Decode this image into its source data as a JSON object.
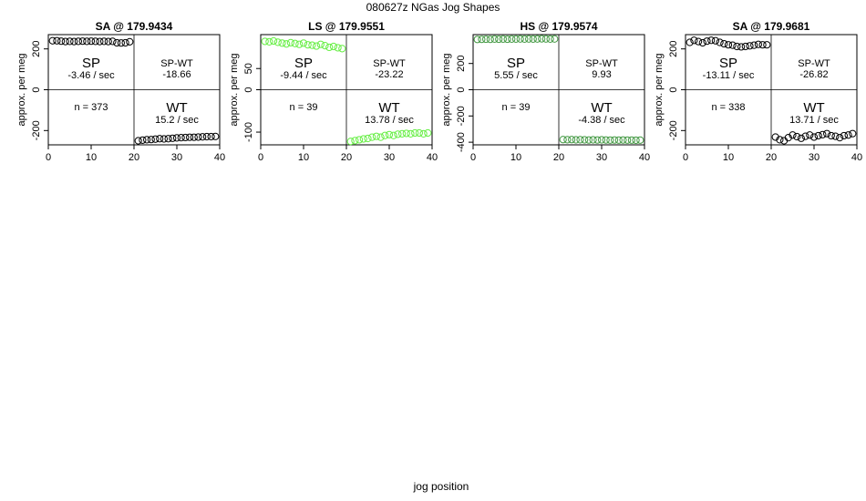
{
  "title": "080627z   NGas Jog Shapes",
  "xlabel": "jog position",
  "chart_data": [
    {
      "type": "scatter",
      "title": "SA @ 179.9434",
      "ylabel": "approx. per meg",
      "xlim": [
        0,
        40
      ],
      "ylim": [
        -270,
        270
      ],
      "xticks": [
        0,
        10,
        20,
        30,
        40
      ],
      "yticks": [
        -200,
        0,
        200
      ],
      "point_color": "#000000",
      "annotations": {
        "sp": "SP",
        "sp_rate": "-3.46 / sec",
        "spwt": "SP-WT",
        "spwt_val": "-18.66",
        "n": "n = 373",
        "wt": "WT",
        "wt_rate": "15.2 / sec"
      },
      "x": [
        1,
        2,
        3,
        4,
        5,
        6,
        7,
        8,
        9,
        10,
        11,
        12,
        13,
        14,
        15,
        16,
        17,
        18,
        19,
        21,
        22,
        23,
        24,
        25,
        26,
        27,
        28,
        29,
        30,
        31,
        32,
        33,
        34,
        35,
        36,
        37,
        38,
        39
      ],
      "y": [
        240,
        240,
        238,
        236,
        237,
        236,
        237,
        238,
        237,
        238,
        237,
        236,
        237,
        236,
        237,
        230,
        229,
        230,
        235,
        -250,
        -247,
        -245,
        -244,
        -242,
        -240,
        -241,
        -240,
        -238,
        -236,
        -235,
        -234,
        -233,
        -233,
        -232,
        -231,
        -230,
        -230,
        -229
      ]
    },
    {
      "type": "scatter",
      "title": "LS @ 179.9551",
      "ylabel": "approx. per meg",
      "xlim": [
        0,
        40
      ],
      "ylim": [
        -130,
        130
      ],
      "xticks": [
        0,
        10,
        20,
        30,
        40
      ],
      "yticks": [
        -100,
        0,
        50
      ],
      "point_color": "#66ee44",
      "annotations": {
        "sp": "SP",
        "sp_rate": "-9.44 / sec",
        "spwt": "SP-WT",
        "spwt_val": "-23.22",
        "n": "n = 39",
        "wt": "WT",
        "wt_rate": "13.78 / sec"
      },
      "x": [
        1,
        2,
        3,
        4,
        5,
        6,
        7,
        8,
        9,
        10,
        11,
        12,
        13,
        14,
        15,
        16,
        17,
        18,
        19,
        21,
        22,
        23,
        24,
        25,
        26,
        27,
        28,
        29,
        30,
        31,
        32,
        33,
        34,
        35,
        36,
        37,
        38,
        39
      ],
      "y": [
        114,
        113,
        115,
        112,
        110,
        108,
        111,
        109,
        107,
        110,
        106,
        105,
        103,
        107,
        104,
        100,
        102,
        99,
        97,
        -122,
        -120,
        -118,
        -116,
        -115,
        -112,
        -110,
        -112,
        -108,
        -106,
        -108,
        -105,
        -104,
        -103,
        -104,
        -102,
        -102,
        -104,
        -102
      ]
    },
    {
      "type": "scatter",
      "title": "HS @ 179.9574",
      "ylabel": "approx. per meg",
      "xlim": [
        0,
        40
      ],
      "ylim": [
        -420,
        420
      ],
      "xticks": [
        0,
        10,
        20,
        30,
        40
      ],
      "yticks": [
        -400,
        -200,
        0,
        200
      ],
      "point_color": "#449944",
      "annotations": {
        "sp": "SP",
        "sp_rate": "5.55 / sec",
        "spwt": "SP-WT",
        "spwt_val": "9.93",
        "n": "n = 39",
        "wt": "WT",
        "wt_rate": "-4.38 / sec"
      },
      "x": [
        1,
        2,
        3,
        4,
        5,
        6,
        7,
        8,
        9,
        10,
        11,
        12,
        13,
        14,
        15,
        16,
        17,
        18,
        19,
        21,
        22,
        23,
        24,
        25,
        26,
        27,
        28,
        29,
        30,
        31,
        32,
        33,
        34,
        35,
        36,
        37,
        38,
        39
      ],
      "y": [
        383,
        384,
        385,
        384,
        386,
        385,
        386,
        385,
        386,
        386,
        387,
        386,
        387,
        386,
        387,
        388,
        387,
        386,
        387,
        -380,
        -381,
        -380,
        -382,
        -381,
        -382,
        -383,
        -382,
        -383,
        -382,
        -383,
        -384,
        -383,
        -384,
        -383,
        -384,
        -384,
        -385,
        -384
      ]
    },
    {
      "type": "scatter",
      "title": "SA @ 179.9681",
      "ylabel": "approx. per meg",
      "xlim": [
        0,
        40
      ],
      "ylim": [
        -270,
        270
      ],
      "xticks": [
        0,
        10,
        20,
        30,
        40
      ],
      "yticks": [
        -200,
        0,
        200
      ],
      "point_color": "#000000",
      "annotations": {
        "sp": "SP",
        "sp_rate": "-13.11 / sec",
        "spwt": "SP-WT",
        "spwt_val": "-26.82",
        "n": "n = 338",
        "wt": "WT",
        "wt_rate": "13.71 / sec"
      },
      "x": [
        1,
        2,
        3,
        4,
        5,
        6,
        7,
        8,
        9,
        10,
        11,
        12,
        13,
        14,
        15,
        16,
        17,
        18,
        19,
        21,
        22,
        23,
        24,
        25,
        26,
        27,
        28,
        29,
        30,
        31,
        32,
        33,
        34,
        35,
        36,
        37,
        38,
        39
      ],
      "y": [
        232,
        242,
        236,
        230,
        238,
        242,
        240,
        232,
        225,
        220,
        218,
        212,
        210,
        212,
        215,
        218,
        222,
        220,
        220,
        -232,
        -245,
        -250,
        -235,
        -222,
        -230,
        -238,
        -228,
        -222,
        -232,
        -225,
        -220,
        -215,
        -225,
        -228,
        -235,
        -225,
        -222,
        -215
      ]
    }
  ]
}
